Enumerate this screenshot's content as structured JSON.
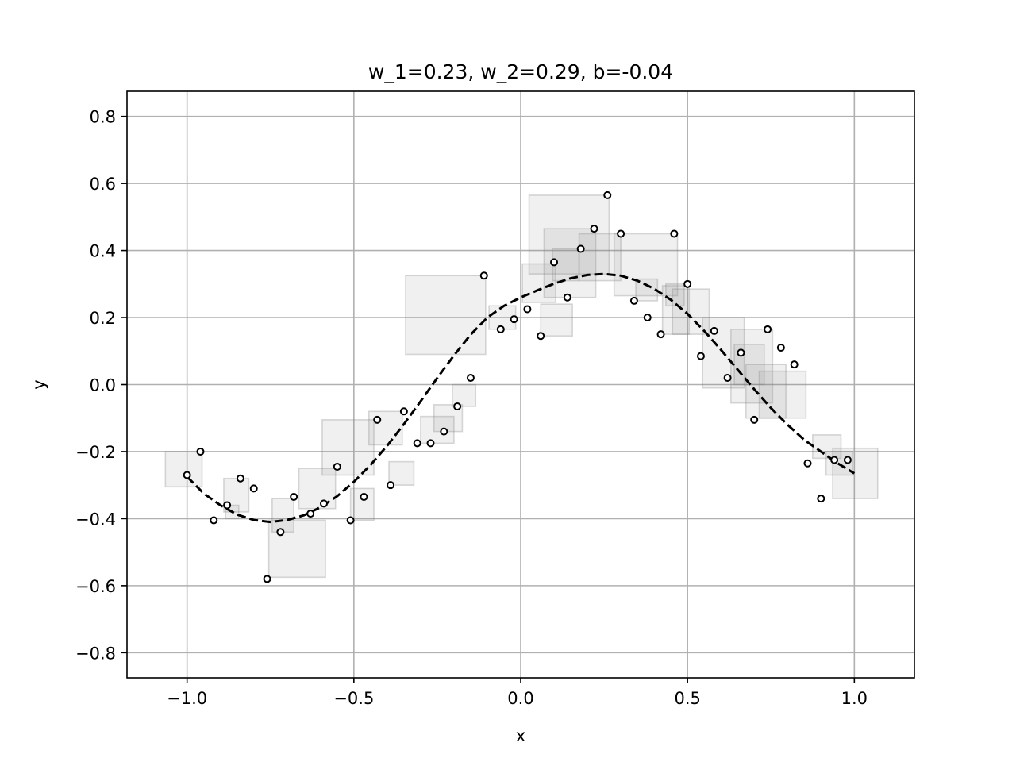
{
  "chart_data": {
    "type": "scatter",
    "title": "w_1=0.23, w_2=0.29, b=-0.04",
    "xlabel": "x",
    "ylabel": "y",
    "xlim": [
      -1.18,
      1.18
    ],
    "ylim": [
      -0.875,
      0.875
    ],
    "xticks": [
      -1.0,
      -0.5,
      0.0,
      0.5,
      1.0
    ],
    "xtick_labels": [
      "−1.0",
      "−0.5",
      "0.0",
      "0.5",
      "1.0"
    ],
    "yticks": [
      -0.8,
      -0.6,
      -0.4,
      -0.2,
      0.0,
      0.2,
      0.4,
      0.6,
      0.8
    ],
    "ytick_labels": [
      "−0.8",
      "−0.6",
      "−0.4",
      "−0.2",
      "0.0",
      "0.2",
      "0.4",
      "0.6",
      "0.8"
    ],
    "grid": true,
    "points": {
      "x": [
        -1.0,
        -0.96,
        -0.92,
        -0.88,
        -0.84,
        -0.8,
        -0.76,
        -0.72,
        -0.68,
        -0.63,
        -0.59,
        -0.55,
        -0.51,
        -0.47,
        -0.43,
        -0.39,
        -0.35,
        -0.31,
        -0.27,
        -0.23,
        -0.19,
        -0.15,
        -0.11,
        -0.06,
        -0.02,
        0.02,
        0.06,
        0.1,
        0.14,
        0.18,
        0.22,
        0.26,
        0.3,
        0.34,
        0.38,
        0.42,
        0.46,
        0.5,
        0.54,
        0.58,
        0.62,
        0.66,
        0.7,
        0.74,
        0.78,
        0.82,
        0.86,
        0.9,
        0.94,
        0.98
      ],
      "y": [
        -0.27,
        -0.2,
        -0.405,
        -0.36,
        -0.28,
        -0.31,
        -0.58,
        -0.44,
        -0.335,
        -0.385,
        -0.355,
        -0.245,
        -0.405,
        -0.335,
        -0.105,
        -0.3,
        -0.08,
        -0.175,
        -0.175,
        -0.14,
        -0.065,
        0.02,
        0.325,
        0.165,
        0.195,
        0.225,
        0.145,
        0.365,
        0.26,
        0.405,
        0.465,
        0.565,
        0.45,
        0.25,
        0.2,
        0.15,
        0.45,
        0.3,
        0.085,
        0.16,
        0.02,
        0.095,
        -0.105,
        0.165,
        0.11,
        0.06,
        -0.235,
        -0.34,
        -0.225,
        -0.225
      ]
    },
    "boxes": [
      {
        "x0": -1.065,
        "x1": -0.955,
        "y0": -0.305,
        "y1": -0.2
      },
      {
        "x0": -0.89,
        "x1": -0.815,
        "y0": -0.38,
        "y1": -0.28
      },
      {
        "x0": -0.885,
        "x1": -0.845,
        "y0": -0.4,
        "y1": -0.36
      },
      {
        "x0": -0.745,
        "x1": -0.68,
        "y0": -0.44,
        "y1": -0.34
      },
      {
        "x0": -0.755,
        "x1": -0.585,
        "y0": -0.575,
        "y1": -0.405
      },
      {
        "x0": -0.665,
        "x1": -0.555,
        "y0": -0.37,
        "y1": -0.25
      },
      {
        "x0": -0.595,
        "x1": -0.44,
        "y0": -0.27,
        "y1": -0.105
      },
      {
        "x0": -0.51,
        "x1": -0.44,
        "y0": -0.405,
        "y1": -0.31
      },
      {
        "x0": -0.455,
        "x1": -0.355,
        "y0": -0.18,
        "y1": -0.08
      },
      {
        "x0": -0.395,
        "x1": -0.32,
        "y0": -0.3,
        "y1": -0.23
      },
      {
        "x0": -0.3,
        "x1": -0.2,
        "y0": -0.175,
        "y1": -0.095
      },
      {
        "x0": -0.26,
        "x1": -0.175,
        "y0": -0.14,
        "y1": -0.06
      },
      {
        "x0": -0.205,
        "x1": -0.135,
        "y0": -0.065,
        "y1": 0.0
      },
      {
        "x0": -0.345,
        "x1": -0.105,
        "y0": 0.09,
        "y1": 0.325
      },
      {
        "x0": -0.095,
        "x1": -0.015,
        "y0": 0.165,
        "y1": 0.235
      },
      {
        "x0": 0.005,
        "x1": 0.105,
        "y0": 0.245,
        "y1": 0.36
      },
      {
        "x0": 0.06,
        "x1": 0.155,
        "y0": 0.145,
        "y1": 0.24
      },
      {
        "x0": 0.025,
        "x1": 0.265,
        "y0": 0.33,
        "y1": 0.565
      },
      {
        "x0": 0.07,
        "x1": 0.225,
        "y0": 0.26,
        "y1": 0.465
      },
      {
        "x0": 0.095,
        "x1": 0.175,
        "y0": 0.31,
        "y1": 0.405
      },
      {
        "x0": 0.175,
        "x1": 0.3,
        "y0": 0.31,
        "y1": 0.45
      },
      {
        "x0": 0.28,
        "x1": 0.47,
        "y0": 0.265,
        "y1": 0.45
      },
      {
        "x0": 0.345,
        "x1": 0.41,
        "y0": 0.25,
        "y1": 0.315
      },
      {
        "x0": 0.425,
        "x1": 0.505,
        "y0": 0.15,
        "y1": 0.295
      },
      {
        "x0": 0.435,
        "x1": 0.49,
        "y0": 0.235,
        "y1": 0.3
      },
      {
        "x0": 0.455,
        "x1": 0.565,
        "y0": 0.15,
        "y1": 0.285
      },
      {
        "x0": 0.545,
        "x1": 0.67,
        "y0": -0.01,
        "y1": 0.2
      },
      {
        "x0": 0.63,
        "x1": 0.755,
        "y0": -0.055,
        "y1": 0.165
      },
      {
        "x0": 0.64,
        "x1": 0.73,
        "y0": 0.0,
        "y1": 0.12
      },
      {
        "x0": 0.675,
        "x1": 0.795,
        "y0": -0.1,
        "y1": 0.06
      },
      {
        "x0": 0.715,
        "x1": 0.855,
        "y0": -0.1,
        "y1": 0.04
      },
      {
        "x0": 0.875,
        "x1": 0.96,
        "y0": -0.22,
        "y1": -0.15
      },
      {
        "x0": 0.915,
        "x1": 0.995,
        "y0": -0.27,
        "y1": -0.2
      },
      {
        "x0": 0.935,
        "x1": 1.07,
        "y0": -0.34,
        "y1": -0.19
      }
    ],
    "model_curve": {
      "label": "",
      "x": [
        -1.0,
        -0.95,
        -0.9,
        -0.85,
        -0.8,
        -0.75,
        -0.7,
        -0.65,
        -0.6,
        -0.55,
        -0.5,
        -0.45,
        -0.4,
        -0.35,
        -0.3,
        -0.25,
        -0.2,
        -0.15,
        -0.1,
        -0.05,
        0.0,
        0.05,
        0.1,
        0.15,
        0.2,
        0.25,
        0.3,
        0.35,
        0.4,
        0.45,
        0.5,
        0.55,
        0.6,
        0.65,
        0.7,
        0.75,
        0.8,
        0.85,
        0.9,
        0.95,
        1.0
      ],
      "y": [
        -0.275,
        -0.325,
        -0.36,
        -0.388,
        -0.404,
        -0.41,
        -0.404,
        -0.39,
        -0.366,
        -0.333,
        -0.29,
        -0.24,
        -0.182,
        -0.118,
        -0.05,
        0.02,
        0.087,
        0.149,
        0.2,
        0.235,
        0.26,
        0.281,
        0.301,
        0.317,
        0.327,
        0.33,
        0.325,
        0.31,
        0.286,
        0.253,
        0.211,
        0.16,
        0.104,
        0.045,
        -0.014,
        -0.07,
        -0.12,
        -0.165,
        -0.2,
        -0.235,
        -0.265
      ]
    }
  }
}
